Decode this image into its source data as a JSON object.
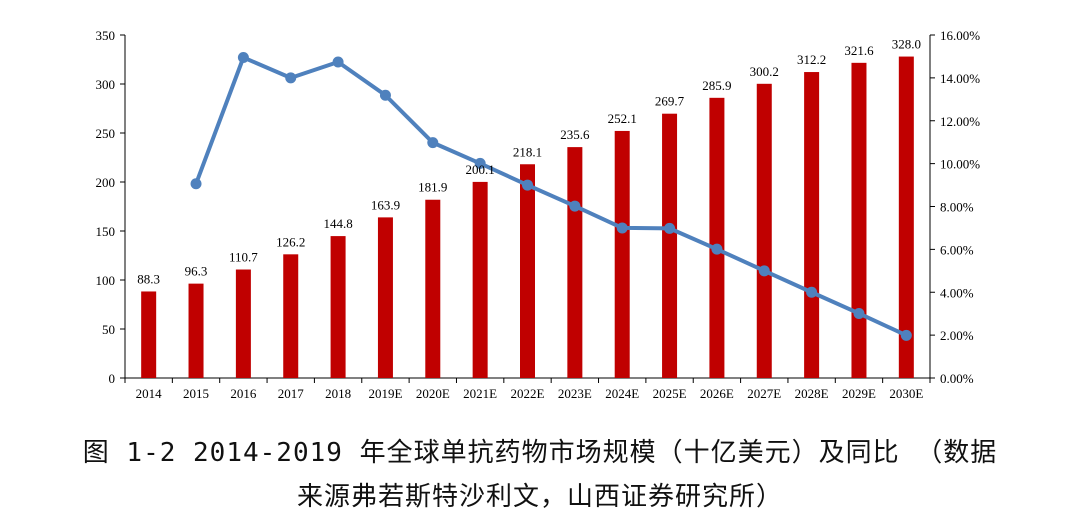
{
  "caption": {
    "line1": "图 1-2  2014-2019 年全球单抗药物市场规模（十亿美元）及同比 （数据",
    "line2": "来源弗若斯特沙利文，山西证券研究所）"
  },
  "chart_data": {
    "type": "bar+line",
    "categories": [
      "2014",
      "2015",
      "2016",
      "2017",
      "2018",
      "2019E",
      "2020E",
      "2021E",
      "2022E",
      "2023E",
      "2024E",
      "2025E",
      "2026E",
      "2027E",
      "2028E",
      "2029E",
      "2030E"
    ],
    "series": [
      {
        "values": [
          88.3,
          96.3,
          110.7,
          126.2,
          144.8,
          163.9,
          181.9,
          200.1,
          218.1,
          235.6,
          252.1,
          269.7,
          285.9,
          300.2,
          312.2,
          321.6,
          328.0
        ],
        "type": "bar",
        "axis": "left",
        "color": "#C00000"
      },
      {
        "values": [
          null,
          9.06,
          14.95,
          14.0,
          14.74,
          13.19,
          10.98,
          10.01,
          9.0,
          8.02,
          7.0,
          6.98,
          6.01,
          5.0,
          4.0,
          3.01,
          1.99
        ],
        "type": "line",
        "axis": "right",
        "color": "#4F81BD"
      }
    ],
    "bar_labels": [
      "88.3",
      "96.3",
      "110.7",
      "126.2",
      "144.8",
      "163.9",
      "181.9",
      "200.1",
      "218.1",
      "235.6",
      "252.1",
      "269.7",
      "285.9",
      "300.2",
      "312.2",
      "321.6",
      "328.0"
    ],
    "y_left": {
      "ylim": [
        0,
        350
      ],
      "ticks": [
        "0",
        "50",
        "100",
        "150",
        "200",
        "250",
        "300",
        "350"
      ]
    },
    "y_right": {
      "ylim": [
        0,
        16
      ],
      "ticks": [
        "0.00%",
        "2.00%",
        "4.00%",
        "6.00%",
        "8.00%",
        "10.00%",
        "12.00%",
        "14.00%",
        "16.00%"
      ]
    },
    "grid": false,
    "legend": "none"
  }
}
